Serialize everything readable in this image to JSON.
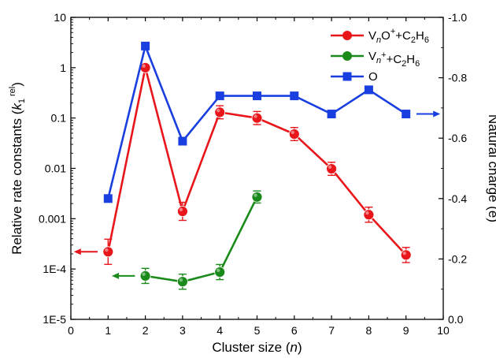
{
  "chart_data": {
    "type": "line",
    "x": [
      0,
      1,
      2,
      3,
      4,
      5,
      6,
      7,
      8,
      9,
      10
    ],
    "xlabel_main": "Cluster size (",
    "xlabel_italic": "n",
    "xlabel_close": ")",
    "xlim": [
      0,
      10
    ],
    "xticks": [
      "0",
      "1",
      "2",
      "3",
      "4",
      "5",
      "6",
      "7",
      "8",
      "9",
      "10"
    ],
    "ylabel_left_main": "Relative rate constants (",
    "ylabel_left_k": "k",
    "ylabel_left_sub": "1",
    "ylabel_left_sup": "rel",
    "ylabel_left_close": ")",
    "ylim_left_log10": [
      -5,
      1
    ],
    "y_left_scale": "log",
    "yticks_left": [
      "1E-5",
      "1E-4",
      "0.001",
      "0.01",
      "0.1",
      "1",
      "10"
    ],
    "ylabel_right": "Natural charge (e)",
    "ylim_right": [
      0.0,
      -1.0
    ],
    "yticks_right": [
      "0.0",
      "-0.2",
      "-0.4",
      "-0.6",
      "-0.8",
      "-1.0"
    ],
    "series": [
      {
        "name_parts": [
          "V",
          "n",
          "O",
          "+",
          "+C",
          "2",
          "H",
          "6"
        ],
        "axis": "left",
        "color": "#e8161b",
        "marker": "circle",
        "arrow": "left",
        "x": [
          1,
          2,
          3,
          4,
          5,
          6,
          7,
          8,
          9
        ],
        "y": [
          0.00022,
          1.0,
          0.0014,
          0.13,
          0.1,
          0.048,
          0.0098,
          0.0012,
          0.00019
        ],
        "err": [
          0.25,
          0.05,
          0.18,
          0.13,
          0.13,
          0.13,
          0.13,
          0.15,
          0.15
        ]
      },
      {
        "name_parts": [
          "V",
          "n",
          "",
          "+",
          "+C",
          "2",
          "H",
          "6"
        ],
        "axis": "left",
        "color": "#1a8a1a",
        "marker": "circle",
        "arrow": "left",
        "x": [
          2,
          3,
          4,
          5
        ],
        "y": [
          7.3e-05,
          5.6e-05,
          8.7e-05,
          0.0027
        ],
        "err": [
          0.15,
          0.15,
          0.15,
          0.12
        ]
      },
      {
        "name_parts": [
          "O",
          "",
          "",
          "",
          "",
          "",
          "",
          ""
        ],
        "axis": "right",
        "color": "#1a3fe0",
        "marker": "square",
        "arrow": "right",
        "x": [
          1,
          2,
          3,
          4,
          5,
          6,
          7,
          8,
          9
        ],
        "y": [
          -0.4,
          -0.905,
          -0.59,
          -0.74,
          -0.74,
          -0.74,
          -0.68,
          -0.76,
          -0.68
        ]
      }
    ],
    "legend_position": "top-right",
    "grid": false
  }
}
